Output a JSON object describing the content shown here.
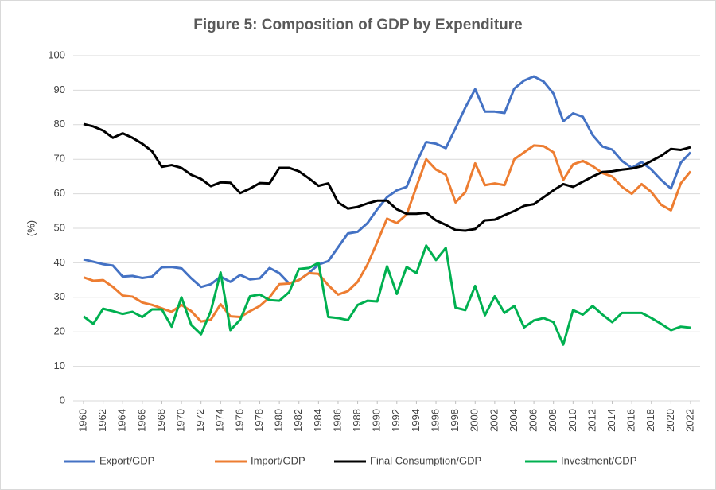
{
  "chart_data": {
    "type": "line",
    "title": "Figure 5: Composition of GDP by Expenditure",
    "ylabel": "(%)",
    "x": [
      1960,
      1961,
      1962,
      1963,
      1964,
      1965,
      1966,
      1967,
      1968,
      1969,
      1970,
      1971,
      1972,
      1973,
      1974,
      1975,
      1976,
      1977,
      1978,
      1979,
      1980,
      1981,
      1982,
      1983,
      1984,
      1985,
      1986,
      1987,
      1988,
      1989,
      1990,
      1991,
      1992,
      1993,
      1994,
      1995,
      1996,
      1997,
      1998,
      1999,
      2000,
      2001,
      2002,
      2003,
      2004,
      2005,
      2006,
      2007,
      2008,
      2009,
      2010,
      2011,
      2012,
      2013,
      2014,
      2015,
      2016,
      2017,
      2018,
      2019,
      2020,
      2021,
      2022
    ],
    "xlim": [
      1960,
      2022
    ],
    "xticks": [
      1960,
      1962,
      1964,
      1966,
      1968,
      1970,
      1972,
      1974,
      1976,
      1978,
      1980,
      1982,
      1984,
      1986,
      1988,
      1990,
      1992,
      1994,
      1996,
      1998,
      2000,
      2002,
      2004,
      2006,
      2008,
      2010,
      2012,
      2014,
      2016,
      2018,
      2020,
      2022
    ],
    "ylim": [
      0,
      100
    ],
    "yticks": [
      0,
      10,
      20,
      30,
      40,
      50,
      60,
      70,
      80,
      90,
      100
    ],
    "grid": true,
    "legend": "bottom",
    "series": [
      {
        "name": "Export/GDP",
        "color": "#4472c4",
        "values": [
          41,
          40.3,
          39.6,
          39.2,
          36,
          36.2,
          35.6,
          36,
          38.7,
          38.8,
          38.4,
          35.5,
          33,
          33.8,
          36,
          34.5,
          36.5,
          35.2,
          35.5,
          38.5,
          37,
          34,
          35,
          37,
          39.5,
          40.5,
          44.5,
          48.5,
          49,
          51.5,
          55.5,
          59,
          61,
          62,
          69,
          75,
          74.5,
          73.2,
          79,
          85,
          90.3,
          83.8,
          83.8,
          83.4,
          90.5,
          92.8,
          94,
          92.5,
          89,
          81,
          83.3,
          82.3,
          77,
          73.7,
          72.8,
          69.5,
          67.5,
          69.2,
          67,
          64,
          61.5,
          69,
          72
        ]
      },
      {
        "name": "Import/GDP",
        "color": "#ed7d31",
        "values": [
          35.8,
          34.8,
          35,
          33,
          30.5,
          30.2,
          28.5,
          27.8,
          26.8,
          25.8,
          27.8,
          26,
          23,
          23.5,
          28,
          24.5,
          24.3,
          26,
          27.5,
          30,
          33.8,
          34,
          35,
          37,
          36.8,
          33.5,
          30.8,
          31.8,
          34.5,
          39.5,
          46,
          52.8,
          51.5,
          54,
          62,
          70,
          67,
          65.5,
          57.5,
          60.5,
          68.8,
          62.5,
          63,
          62.5,
          70,
          72,
          74,
          73.8,
          72,
          64,
          68.5,
          69.5,
          68,
          66,
          65,
          62,
          60,
          62.8,
          60.5,
          56.8,
          55.2,
          63,
          66.5
        ]
      },
      {
        "name": "Final Consumption/GDP",
        "color": "#000000",
        "values": [
          80.2,
          79.5,
          78.3,
          76.2,
          77.5,
          76.2,
          74.5,
          72.3,
          67.8,
          68.3,
          67.5,
          65.5,
          64.3,
          62.2,
          63.3,
          63.2,
          60.2,
          61.5,
          63.1,
          63,
          67.5,
          67.5,
          66.5,
          64.5,
          62.3,
          63,
          57.5,
          55.7,
          56.2,
          57.2,
          58,
          58,
          55.5,
          54.2,
          54.2,
          54.5,
          52.3,
          51,
          49.5,
          49.3,
          49.8,
          52.3,
          52.5,
          53.8,
          55,
          56.5,
          57,
          59,
          61,
          62.8,
          62,
          63.5,
          65,
          66.3,
          66.5,
          67,
          67.3,
          68,
          69.5,
          71,
          73,
          72.7,
          73.5
        ]
      },
      {
        "name": "Investment/GDP",
        "color": "#00b050",
        "values": [
          24.5,
          22.3,
          26.7,
          26,
          25.2,
          25.8,
          24.3,
          26.5,
          26.5,
          21.5,
          30,
          22,
          19.3,
          26,
          37.2,
          20.5,
          23.5,
          30.3,
          30.8,
          29.2,
          29,
          31.5,
          38.2,
          38.5,
          40,
          24.3,
          24,
          23.4,
          27.8,
          29,
          28.8,
          39,
          31,
          38.8,
          37,
          45,
          40.8,
          44.3,
          27,
          26.3,
          33.3,
          24.8,
          30.3,
          25.5,
          27.5,
          21.3,
          23.3,
          24,
          22.8,
          16.3,
          26.3,
          25,
          27.5,
          25,
          22.8,
          25.5,
          25.5,
          25.5,
          24,
          22.3,
          20.5,
          21.5,
          21.2
        ]
      }
    ]
  }
}
